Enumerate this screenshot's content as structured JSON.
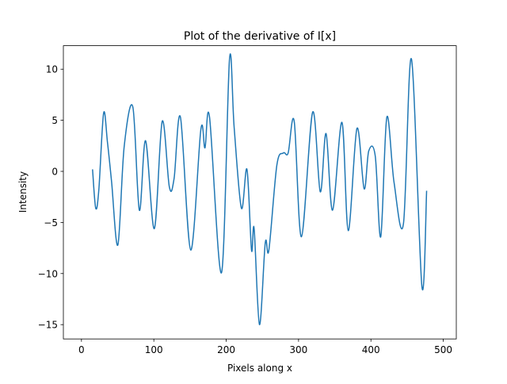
{
  "chart_data": {
    "type": "line",
    "title": "Plot of the derivative of I[x]",
    "x_label": "Pixels along x",
    "y_label": "Intensity",
    "x": [
      15.3,
      19.7,
      24,
      30.6,
      36,
      41.6,
      50.3,
      59,
      71,
      80,
      88.6,
      100.7,
      111.6,
      121.4,
      128,
      136.8,
      151,
      165,
      170.7,
      177,
      193.6,
      204.6,
      211,
      221,
      228.7,
      235,
      238.6,
      246,
      254,
      259,
      270,
      279,
      285.6,
      294,
      304,
      319.5,
      330,
      338,
      347,
      360,
      368.7,
      380.7,
      390.6,
      397,
      406,
      413.6,
      422,
      432,
      445,
      456,
      470.5,
      477
    ],
    "series": [
      {
        "color": "#1f77b4",
        "values": [
          0.2,
          -3.6,
          -1.8,
          5.7,
          2.8,
          -1,
          -7.2,
          2.4,
          6.3,
          -3.8,
          3,
          -5.6,
          4.9,
          -1.5,
          -0.7,
          5.3,
          -7.7,
          4.1,
          2.3,
          5.3,
          -9.9,
          11,
          4.3,
          -3.6,
          0.2,
          -7.7,
          -5.6,
          -15,
          -7,
          -7.7,
          0.6,
          1.8,
          1.8,
          4.9,
          -6.4,
          5.8,
          -2,
          3.7,
          -3.8,
          4.8,
          -5.8,
          4.2,
          -1.7,
          2,
          1.5,
          -6.4,
          5.3,
          -1.1,
          -5.1,
          11,
          -11.3,
          -1.9
        ]
      }
    ],
    "xlim": [
      -25,
      518
    ],
    "ylim": [
      -16.4,
      12.3
    ],
    "xticks": [
      0,
      100,
      200,
      300,
      400,
      500
    ],
    "yticks": [
      {
        "value": -15,
        "label": "−15"
      },
      {
        "value": -10,
        "label": "−10"
      },
      {
        "value": -5,
        "label": "−5"
      },
      0,
      5,
      10
    ]
  }
}
